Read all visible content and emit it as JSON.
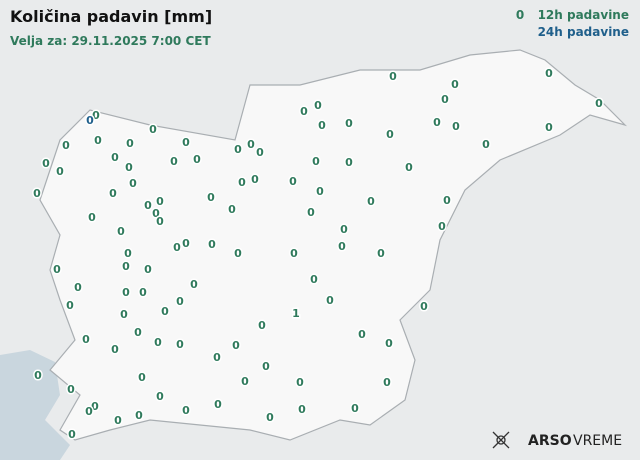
{
  "header": {
    "title": "Količina padavin [mm]",
    "subtitle": "Velja za: 29.11.2025 7:00 CET"
  },
  "legend": [
    {
      "sample": "0",
      "label": "12h padavine",
      "color": "#2f7a5c"
    },
    {
      "label": "24h padavine",
      "color": "#1f5f8b"
    }
  ],
  "stations_12h": [
    0,
    0,
    0,
    0,
    0,
    0,
    0,
    0,
    0,
    0,
    0,
    0,
    0,
    0,
    0,
    0,
    0,
    0,
    0,
    0,
    0,
    0,
    0,
    0,
    0,
    0,
    0,
    0,
    0,
    0,
    0,
    0,
    0,
    0,
    0,
    0,
    0,
    0,
    0,
    0,
    0,
    0,
    0,
    0,
    0,
    0,
    0,
    0,
    0,
    0,
    0,
    0,
    0,
    0,
    0,
    0,
    0,
    0,
    0,
    0,
    0,
    0,
    0,
    0,
    0,
    0,
    0,
    0,
    0,
    0,
    0,
    0,
    0,
    0,
    1,
    0,
    0,
    0,
    0,
    0,
    0,
    0,
    0,
    0,
    0,
    0,
    0,
    0,
    0,
    0,
    0,
    0,
    0,
    0,
    0,
    0,
    0,
    0,
    0,
    0,
    0,
    0,
    0
  ],
  "stations_24h": [
    0
  ],
  "brand": {
    "name": "ARSO",
    "suffix": "VREME"
  }
}
